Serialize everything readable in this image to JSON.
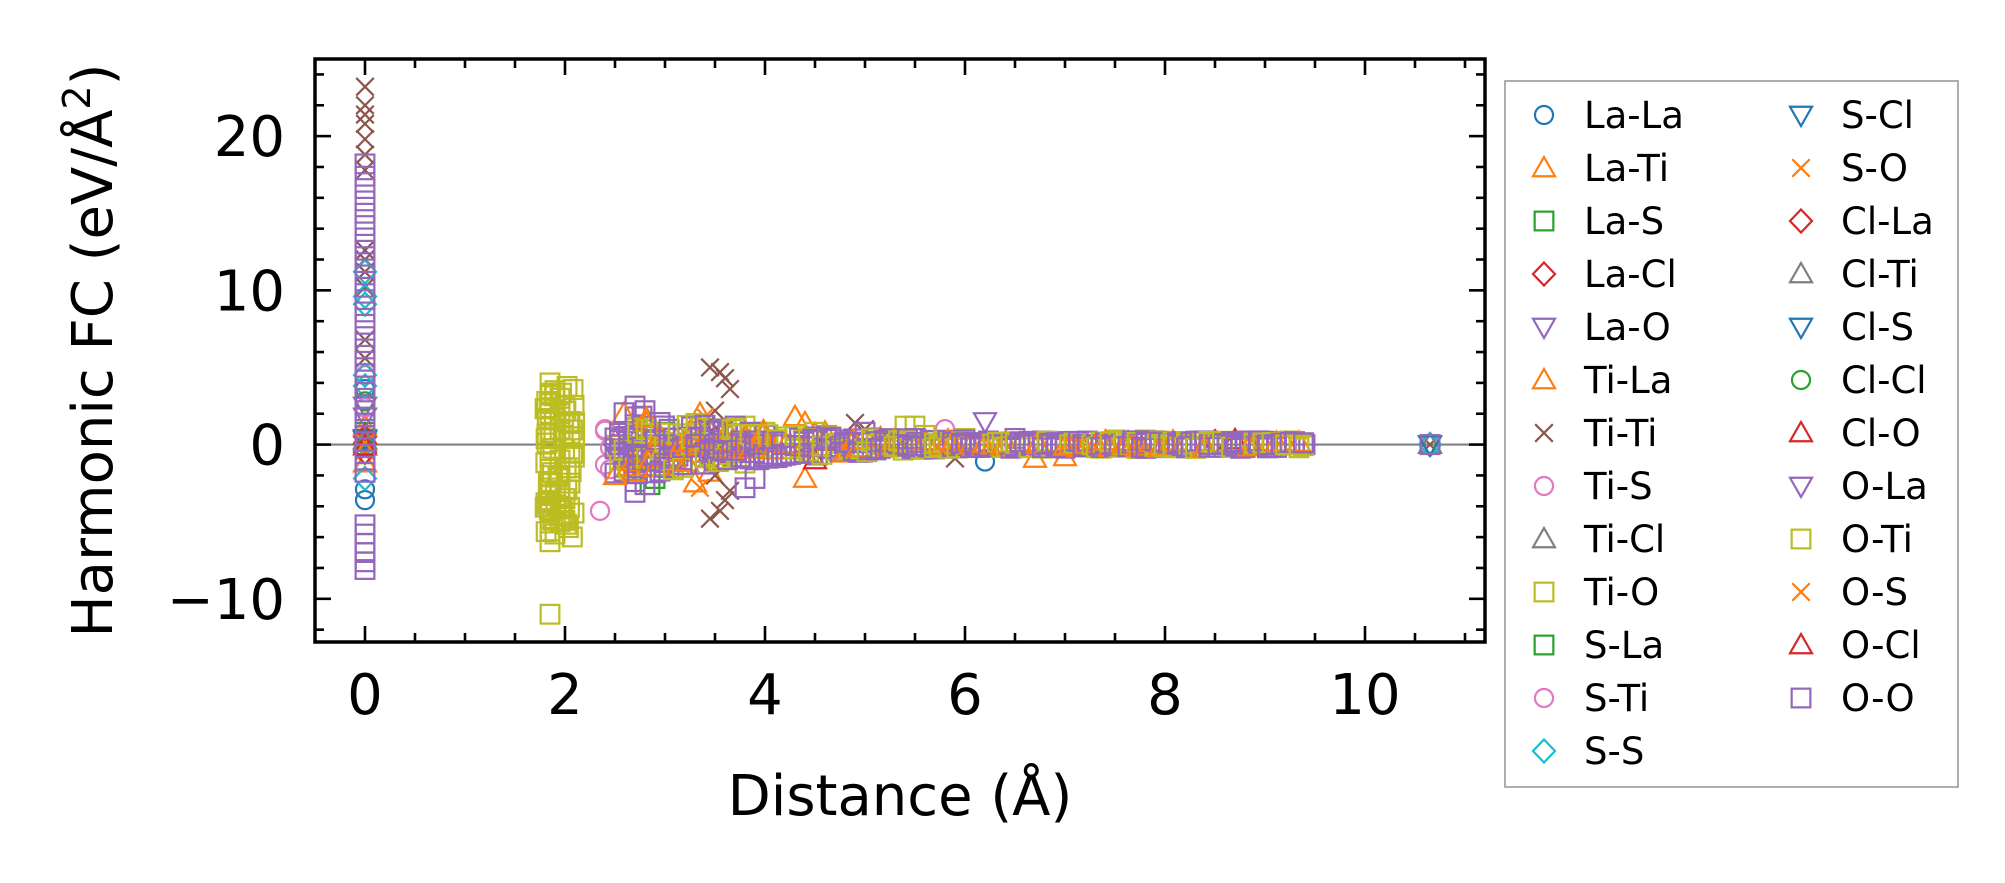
{
  "chart_data": {
    "type": "scatter",
    "title": "",
    "xlabel": "Distance (Å)",
    "ylabel_main": "Harmonic FC (eV/Å",
    "ylabel_sup": "2",
    "ylabel_close": ")",
    "xlim": [
      -0.5,
      11.2
    ],
    "ylim": [
      -12.8,
      25
    ],
    "x_ticks": [
      0,
      2,
      4,
      6,
      8,
      10
    ],
    "x_tick_labels": [
      "0",
      "2",
      "4",
      "6",
      "8",
      "10"
    ],
    "y_ticks": [
      -10,
      0,
      10,
      20
    ],
    "y_tick_labels": [
      "−10",
      "0",
      "10",
      "20"
    ],
    "zero_line": true,
    "legend_position": "outside-right",
    "series": [
      {
        "name": "La-La",
        "marker": "o",
        "color": "#1f77b4",
        "points": [
          [
            0,
            -3.6
          ],
          [
            0,
            -2.9
          ],
          [
            0,
            3.6
          ],
          [
            6.2,
            -1.1
          ],
          [
            10.65,
            0.0
          ]
        ]
      },
      {
        "name": "La-Ti",
        "marker": "^",
        "color": "#ff7f0e",
        "points": [
          [
            0,
            1.2
          ],
          [
            3.3,
            -2.5
          ],
          [
            3.4,
            0.9
          ],
          [
            4.3,
            1.8
          ],
          [
            4.4,
            -2.2
          ],
          [
            4.5,
            0.7
          ],
          [
            6.7,
            -0.9
          ],
          [
            7.0,
            -0.8
          ],
          [
            10.65,
            0.0
          ]
        ]
      },
      {
        "name": "La-S",
        "marker": "s",
        "color": "#2ca02c",
        "points": [
          [
            0,
            0.8
          ],
          [
            2.9,
            -2.2
          ],
          [
            3.0,
            0.8
          ],
          [
            3.1,
            -0.9
          ],
          [
            10.65,
            0.0
          ]
        ]
      },
      {
        "name": "La-Cl",
        "marker": "D",
        "color": "#d62728",
        "points": [
          [
            0,
            0.5
          ],
          [
            3.3,
            0.0
          ],
          [
            3.5,
            0.4
          ],
          [
            3.6,
            -0.6
          ],
          [
            8.5,
            0.1
          ],
          [
            10.65,
            0.0
          ]
        ]
      },
      {
        "name": "La-O",
        "marker": "v",
        "color": "#9467bd",
        "points": [
          [
            0,
            2.5
          ],
          [
            2.5,
            -0.5
          ],
          [
            2.6,
            0.6
          ],
          [
            6.2,
            1.5
          ],
          [
            10.65,
            0.0
          ]
        ]
      },
      {
        "name": "Ti-La",
        "marker": "^",
        "color": "#ff7f0e",
        "points": [
          [
            0,
            -1.2
          ],
          [
            3.35,
            2.0
          ],
          [
            3.45,
            -1.8
          ],
          [
            4.4,
            1.4
          ],
          [
            4.6,
            0.8
          ]
        ]
      },
      {
        "name": "Ti-Ti",
        "marker": "x",
        "color": "#8c564b",
        "points": [
          [
            0,
            23.2
          ],
          [
            0,
            22.0
          ],
          [
            0,
            21.4
          ],
          [
            0,
            20.8
          ],
          [
            0,
            19.8
          ],
          [
            0,
            18.8
          ],
          [
            0,
            17.8
          ],
          [
            0,
            12.6
          ],
          [
            0,
            12.0
          ],
          [
            0,
            11.2
          ],
          [
            0,
            10.2
          ],
          [
            0,
            6.8
          ],
          [
            0,
            5.6
          ],
          [
            3.45,
            5.0
          ],
          [
            3.55,
            4.7
          ],
          [
            3.6,
            4.3
          ],
          [
            3.65,
            3.6
          ],
          [
            3.45,
            -4.8
          ],
          [
            3.55,
            -4.3
          ],
          [
            3.6,
            -3.6
          ],
          [
            3.65,
            -3.0
          ],
          [
            3.5,
            -2.0
          ],
          [
            3.5,
            2.2
          ],
          [
            3.4,
            1.2
          ],
          [
            3.4,
            -1.0
          ],
          [
            4.9,
            1.4
          ],
          [
            5.0,
            1.0
          ],
          [
            5.9,
            -0.9
          ],
          [
            10.65,
            0.0
          ]
        ]
      },
      {
        "name": "Ti-S",
        "marker": "o",
        "color": "#e377c2",
        "points": [
          [
            0,
            4.5
          ],
          [
            2.35,
            -4.3
          ],
          [
            2.4,
            -1.3
          ],
          [
            2.4,
            0.9
          ],
          [
            2.45,
            -0.2
          ],
          [
            5.8,
            1.0
          ],
          [
            10.65,
            0.0
          ]
        ]
      },
      {
        "name": "Ti-Cl",
        "marker": "^",
        "color": "#7f7f7f",
        "points": [
          [
            0,
            0.3
          ],
          [
            3.6,
            0.2
          ],
          [
            10.65,
            0.0
          ]
        ]
      },
      {
        "name": "Ti-O",
        "marker": "s",
        "color": "#bcbd22",
        "points": [
          [
            0,
            0.5
          ],
          [
            1.85,
            -11.0
          ],
          [
            1.85,
            4.0
          ],
          [
            1.85,
            3.2
          ],
          [
            1.85,
            2.4
          ],
          [
            1.85,
            1.6
          ],
          [
            1.85,
            0.8
          ],
          [
            1.85,
            -0.8
          ],
          [
            1.85,
            -1.6
          ],
          [
            1.85,
            -2.4
          ],
          [
            1.85,
            -3.2
          ],
          [
            1.85,
            -4.0
          ],
          [
            1.85,
            -4.8
          ],
          [
            1.85,
            -5.6
          ],
          [
            1.85,
            -6.3
          ],
          [
            1.95,
            3.0
          ],
          [
            1.95,
            2.0
          ],
          [
            1.95,
            1.0
          ],
          [
            1.95,
            -1.0
          ],
          [
            1.95,
            -2.0
          ],
          [
            1.95,
            -3.0
          ],
          [
            1.95,
            -4.0
          ],
          [
            1.95,
            -5.0
          ],
          [
            2.05,
            1.5
          ],
          [
            2.05,
            0.5
          ],
          [
            2.05,
            -0.5
          ],
          [
            2.05,
            -1.5
          ],
          [
            2.05,
            -2.5
          ],
          [
            3.8,
            1.2
          ],
          [
            3.8,
            -1.2
          ],
          [
            3.9,
            0.6
          ],
          [
            4.0,
            0.8
          ],
          [
            4.2,
            0.5
          ],
          [
            4.5,
            0.8
          ],
          [
            5.5,
            1.2
          ],
          [
            5.6,
            0.6
          ],
          [
            6.0,
            0.4
          ],
          [
            7.5,
            0.3
          ],
          [
            8.0,
            0.2
          ],
          [
            9.0,
            0.2
          ],
          [
            10.65,
            0.0
          ]
        ]
      },
      {
        "name": "S-La",
        "marker": "s",
        "color": "#2ca02c",
        "points": [
          [
            0,
            3.8
          ],
          [
            2.85,
            -2.6
          ],
          [
            10.65,
            0.0
          ]
        ]
      },
      {
        "name": "S-Ti",
        "marker": "o",
        "color": "#e377c2",
        "points": [
          [
            0,
            2.4
          ],
          [
            2.4,
            1.0
          ],
          [
            2.45,
            -1.6
          ]
        ]
      },
      {
        "name": "S-S",
        "marker": "D",
        "color": "#17becf",
        "points": [
          [
            0,
            11.2
          ],
          [
            0,
            9.6
          ],
          [
            0,
            9.1
          ],
          [
            0,
            4.5
          ],
          [
            0,
            3.8
          ],
          [
            0,
            0.0
          ],
          [
            0,
            -2.2
          ],
          [
            10.65,
            0.0
          ]
        ]
      },
      {
        "name": "S-Cl",
        "marker": "v",
        "color": "#1f77b4",
        "points": [
          [
            0,
            0.4
          ],
          [
            10.65,
            0.0
          ]
        ]
      },
      {
        "name": "S-O",
        "marker": "x",
        "color": "#ff7f0e",
        "points": [
          [
            0,
            -0.4
          ],
          [
            3.4,
            1.8
          ],
          [
            3.35,
            -2.8
          ]
        ]
      },
      {
        "name": "Cl-La",
        "marker": "D",
        "color": "#d62728",
        "points": [
          [
            0,
            -0.5
          ],
          [
            3.5,
            -0.8
          ],
          [
            8.5,
            0.2
          ]
        ]
      },
      {
        "name": "Cl-Ti",
        "marker": "^",
        "color": "#7f7f7f",
        "points": [
          [
            0,
            0.2
          ],
          [
            3.6,
            -0.2
          ]
        ]
      },
      {
        "name": "Cl-S",
        "marker": "v",
        "color": "#1f77b4",
        "points": [
          [
            0,
            0.3
          ]
        ]
      },
      {
        "name": "Cl-Cl",
        "marker": "o",
        "color": "#2ca02c",
        "points": [
          [
            0,
            2.8
          ],
          [
            0,
            -0.2
          ]
        ]
      },
      {
        "name": "Cl-O",
        "marker": "^",
        "color": "#d62728",
        "points": [
          [
            0,
            0.6
          ],
          [
            4.5,
            -1.0
          ],
          [
            4.6,
            0.2
          ],
          [
            8.7,
            0.3
          ]
        ]
      },
      {
        "name": "O-La",
        "marker": "v",
        "color": "#9467bd",
        "points": [
          [
            0,
            1.8
          ],
          [
            2.55,
            -0.8
          ],
          [
            3.0,
            0.5
          ]
        ]
      },
      {
        "name": "O-Ti",
        "marker": "s",
        "color": "#bcbd22",
        "points": [
          [
            0,
            -0.6
          ],
          [
            1.9,
            -5.8
          ],
          [
            1.9,
            3.5
          ],
          [
            2.0,
            -3.5
          ],
          [
            2.0,
            2.5
          ],
          [
            5.4,
            1.2
          ],
          [
            7.8,
            0.3
          ]
        ]
      },
      {
        "name": "O-S",
        "marker": "x",
        "color": "#ff7f0e",
        "points": [
          [
            0,
            0.1
          ],
          [
            3.3,
            0.5
          ]
        ]
      },
      {
        "name": "O-Cl",
        "marker": "^",
        "color": "#d62728",
        "points": [
          [
            0,
            -0.1
          ],
          [
            4.4,
            -0.6
          ]
        ]
      },
      {
        "name": "O-O",
        "marker": "s",
        "color": "#9467bd",
        "points": [
          [
            0,
            18.2
          ],
          [
            0,
            17.4
          ],
          [
            0,
            16.6
          ],
          [
            0,
            15.8
          ],
          [
            0,
            15.0
          ],
          [
            0,
            14.2
          ],
          [
            0,
            13.4
          ],
          [
            0,
            12.6
          ],
          [
            0,
            11.8
          ],
          [
            0,
            11.0
          ],
          [
            0,
            10.2
          ],
          [
            0,
            9.4
          ],
          [
            0,
            8.6
          ],
          [
            0,
            7.8
          ],
          [
            0,
            7.0
          ],
          [
            0,
            6.2
          ],
          [
            0,
            5.4
          ],
          [
            0,
            4.6
          ],
          [
            0,
            3.8
          ],
          [
            0,
            3.0
          ],
          [
            0,
            2.2
          ],
          [
            0,
            1.4
          ],
          [
            0,
            0.6
          ],
          [
            0,
            -0.2
          ],
          [
            0,
            -1.0
          ],
          [
            0,
            -1.8
          ],
          [
            0,
            -5.2
          ],
          [
            0,
            -5.8
          ],
          [
            0,
            -6.4
          ],
          [
            0,
            -7.0
          ],
          [
            0,
            -7.6
          ],
          [
            0,
            -8.1
          ],
          [
            2.7,
            2.5
          ],
          [
            2.7,
            1.8
          ],
          [
            2.7,
            1.1
          ],
          [
            2.7,
            0.4
          ],
          [
            2.7,
            -0.3
          ],
          [
            2.7,
            -1.0
          ],
          [
            2.7,
            -1.7
          ],
          [
            2.7,
            -2.4
          ],
          [
            2.7,
            -3.1
          ],
          [
            2.8,
            2.2
          ],
          [
            2.8,
            1.2
          ],
          [
            2.8,
            -1.4
          ],
          [
            2.8,
            -2.6
          ],
          [
            3.7,
            1.2
          ],
          [
            3.75,
            -0.8
          ],
          [
            3.8,
            -2.8
          ],
          [
            3.9,
            -2.2
          ],
          [
            4.0,
            0.6
          ],
          [
            4.5,
            0.5
          ],
          [
            4.8,
            0.3
          ],
          [
            5.0,
            0.8
          ],
          [
            5.5,
            0.4
          ],
          [
            6.0,
            0.3
          ],
          [
            6.5,
            0.4
          ],
          [
            7.0,
            0.2
          ],
          [
            7.5,
            0.2
          ],
          [
            8.0,
            0.1
          ],
          [
            8.5,
            0.1
          ],
          [
            9.0,
            0.1
          ],
          [
            9.4,
            0.0
          ],
          [
            10.65,
            0.0
          ]
        ]
      }
    ]
  }
}
